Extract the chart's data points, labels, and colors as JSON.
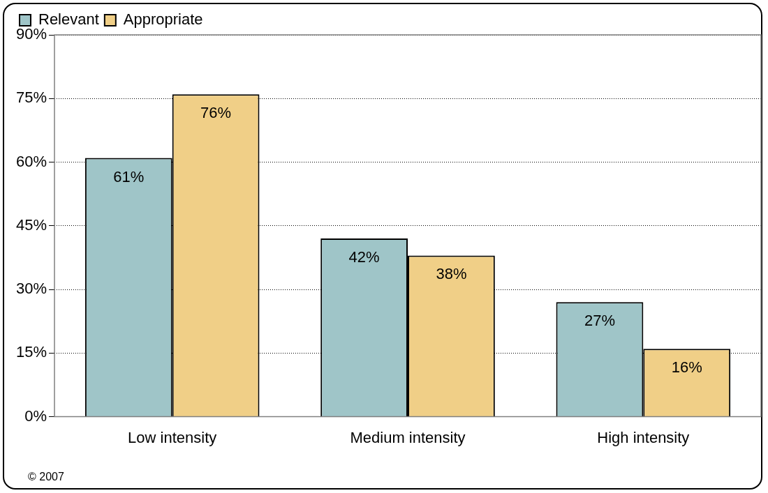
{
  "chart_data": {
    "type": "bar",
    "categories": [
      "Low intensity",
      "Medium intensity",
      "High intensity"
    ],
    "series": [
      {
        "name": "Relevant",
        "color": "#9fc5c8",
        "values": [
          61,
          42,
          27
        ],
        "value_labels": [
          "61%",
          "42%",
          "27%"
        ]
      },
      {
        "name": "Appropriate",
        "color": "#f0cf87",
        "values": [
          76,
          38,
          16
        ],
        "value_labels": [
          "76%",
          "38%",
          "16%"
        ]
      }
    ],
    "ylim": [
      0,
      90
    ],
    "yticks": [
      {
        "value": 0,
        "label": "0%"
      },
      {
        "value": 15,
        "label": "15%"
      },
      {
        "value": 30,
        "label": "30%"
      },
      {
        "value": 45,
        "label": "45%"
      },
      {
        "value": 60,
        "label": "60%"
      },
      {
        "value": 75,
        "label": "75%"
      },
      {
        "value": 90,
        "label": "90%"
      }
    ],
    "grid": "y",
    "legend": "top left",
    "annotations": [
      "© 2007"
    ]
  }
}
